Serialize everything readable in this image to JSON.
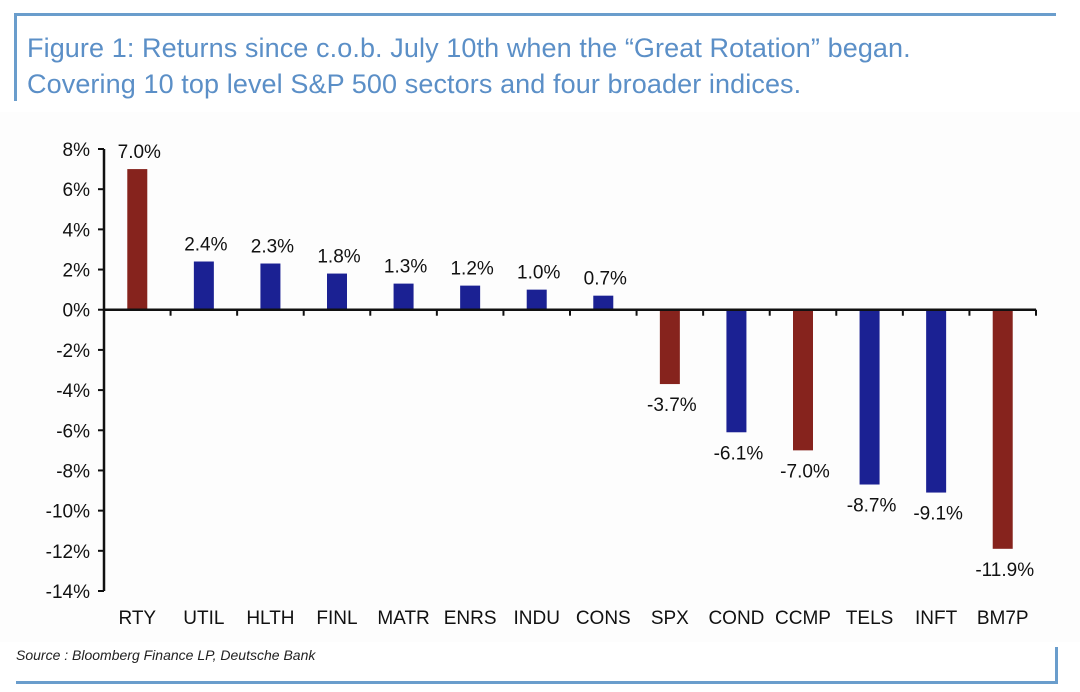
{
  "title": {
    "line1": "Figure 1: Returns since c.o.b. July 10th when the “Great Rotation” began.",
    "line2": "Covering 10 top level S&P 500 sectors and four broader indices."
  },
  "source": "Source : Bloomberg Finance LP, Deutsche Bank",
  "colors": {
    "frame": "#6a9dcc",
    "title": "#5b8fc7",
    "index_bar": "#86231d",
    "sector_bar": "#1b2193",
    "axis": "#111111"
  },
  "chart_data": {
    "type": "bar",
    "title": "Returns since c.o.b. July 10th when the “Great Rotation” began",
    "xlabel": "",
    "ylabel": "",
    "ylim": [
      -14,
      8
    ],
    "y_ticks": [
      8,
      6,
      4,
      2,
      0,
      -2,
      -4,
      -6,
      -8,
      -10,
      -12,
      -14
    ],
    "y_tick_labels": [
      "8%",
      "6%",
      "4%",
      "2%",
      "0%",
      "-2%",
      "-4%",
      "-6%",
      "-8%",
      "-10%",
      "-12%",
      "-14%"
    ],
    "grid": false,
    "legend": "none",
    "categories": [
      "RTY",
      "UTIL",
      "HLTH",
      "FINL",
      "MATR",
      "ENRS",
      "INDU",
      "CONS",
      "SPX",
      "COND",
      "CCMP",
      "TELS",
      "INFT",
      "BM7P"
    ],
    "values": [
      7.0,
      2.4,
      2.3,
      1.8,
      1.3,
      1.2,
      1.0,
      0.7,
      -3.7,
      -6.1,
      -7.0,
      -8.7,
      -9.1,
      -11.9
    ],
    "data_labels": [
      "7.0%",
      "2.4%",
      "2.3%",
      "1.8%",
      "1.3%",
      "1.2%",
      "1.0%",
      "0.7%",
      "-3.7%",
      "-6.1%",
      "-7.0%",
      "-8.7%",
      "-9.1%",
      "-11.9%"
    ],
    "groups": [
      "index",
      "sector",
      "sector",
      "sector",
      "sector",
      "sector",
      "sector",
      "sector",
      "index",
      "sector",
      "index",
      "sector",
      "sector",
      "index"
    ]
  }
}
